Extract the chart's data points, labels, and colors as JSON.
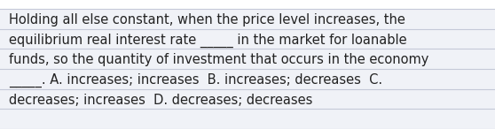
{
  "text_lines": [
    "Holding all else constant, when the price level increases, the",
    "equilibrium real interest rate _____ in the market for loanable",
    "funds, so the quantity of investment that occurs in the economy",
    "_____. A. increases; increases  B. increases; decreases  C.",
    "decreases; increases  D. decreases; decreases"
  ],
  "background_color": "#f0f2f7",
  "top_strip_color": "#ffffff",
  "text_color": "#222222",
  "font_size": 10.5,
  "line_color": "#c5c9d8",
  "line_width": 0.8
}
